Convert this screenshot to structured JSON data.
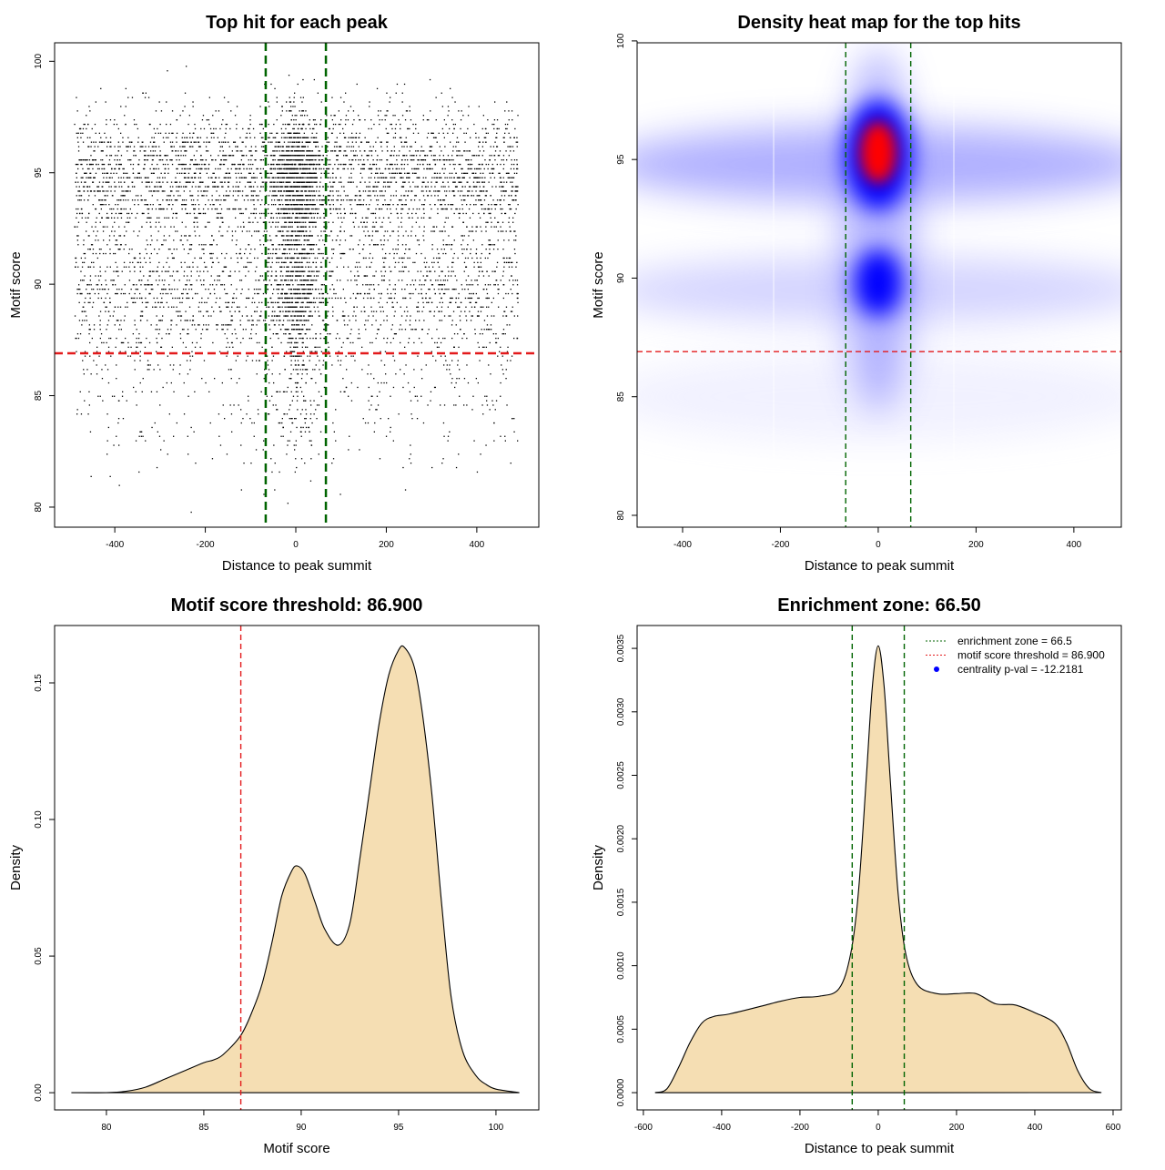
{
  "chart_data": [
    {
      "type": "scatter",
      "title": "Top hit for each peak",
      "xlabel": "Distance to peak summit",
      "ylabel": "Motif score",
      "xlim": [
        -533,
        537
      ],
      "ylim": [
        79.1,
        100.83
      ],
      "xticks": [
        -400,
        -200,
        0,
        200,
        400
      ],
      "yticks": [
        80,
        85,
        90,
        95,
        100
      ],
      "vlines": {
        "values": [
          -66.5,
          66.5
        ],
        "color": "#006400",
        "style": "dashed"
      },
      "hlines": {
        "values": [
          86.9
        ],
        "color": "#e31a1c",
        "style": "dashed"
      },
      "point_color": "#000000",
      "grid": false
    },
    {
      "type": "heatmap",
      "title": "Density heat map for the top hits",
      "xlabel": "Distance to peak summit",
      "ylabel": "Motif score",
      "xlim": [
        -493,
        497
      ],
      "ylim": [
        79.5,
        99.92
      ],
      "xticks": [
        -400,
        -200,
        0,
        200,
        400
      ],
      "yticks": [
        80,
        85,
        90,
        95,
        100
      ],
      "colors": [
        "#ffffff",
        "#0000ff",
        "#ff0000"
      ],
      "hotspots": [
        {
          "x": 0,
          "y": 95.3,
          "level": "high"
        },
        {
          "x": 0,
          "y": 89.8,
          "level": "medium"
        }
      ],
      "vlines": {
        "values": [
          -66.5,
          66.5
        ],
        "color": "#006400",
        "style": "dashed"
      },
      "hlines": {
        "values": [
          86.9
        ],
        "color": "#e31a1c",
        "style": "dashed"
      },
      "grid": false
    },
    {
      "type": "area",
      "title": "Motif score threshold: 86.900",
      "xlabel": "Motif score",
      "ylabel": "Density",
      "xlim": [
        77.34,
        102.2
      ],
      "ylim": [
        -0.0063,
        0.171
      ],
      "xticks": [
        80,
        85,
        90,
        95,
        100
      ],
      "yticks": [
        "0.00",
        "0.05",
        "0.10",
        "0.15"
      ],
      "fill": "#f5deb3",
      "x": [
        78.2,
        80,
        81,
        82,
        83,
        84,
        85,
        85.5,
        86,
        86.9,
        87.5,
        88,
        88.5,
        89,
        89.5,
        89.8,
        90.2,
        90.7,
        91.2,
        91.9,
        92.5,
        93,
        93.5,
        94,
        94.5,
        95,
        95.3,
        95.8,
        96.2,
        96.7,
        97.2,
        97.7,
        98.3,
        99,
        99.5,
        100,
        101.2
      ],
      "y": [
        0,
        0,
        0.0005,
        0.002,
        0.005,
        0.008,
        0.011,
        0.012,
        0.014,
        0.021,
        0.03,
        0.04,
        0.055,
        0.072,
        0.081,
        0.083,
        0.08,
        0.07,
        0.06,
        0.054,
        0.062,
        0.085,
        0.11,
        0.135,
        0.153,
        0.162,
        0.163,
        0.156,
        0.14,
        0.11,
        0.07,
        0.035,
        0.015,
        0.006,
        0.003,
        0.0013,
        0
      ],
      "vlines": {
        "values": [
          86.9
        ],
        "color": "#e31a1c",
        "style": "dashed"
      },
      "grid": false
    },
    {
      "type": "area",
      "title": "Enrichment zone: 66.50",
      "xlabel": "Distance to peak summit",
      "ylabel": "Density",
      "xlim": [
        -616,
        621
      ],
      "ylim": [
        -0.000136,
        0.00368
      ],
      "xticks": [
        -600,
        -400,
        -200,
        0,
        200,
        400,
        600
      ],
      "yticks": [
        "0.0000",
        "0.0005",
        "0.0010",
        "0.0015",
        "0.0020",
        "0.0025",
        "0.0030",
        "0.0035"
      ],
      "fill": "#f5deb3",
      "x": [
        -570,
        -540,
        -510,
        -480,
        -450,
        -420,
        -380,
        -300,
        -250,
        -200,
        -150,
        -100,
        -70,
        -50,
        -30,
        -15,
        0,
        15,
        30,
        50,
        70,
        100,
        150,
        200,
        250,
        300,
        350,
        400,
        450,
        480,
        510,
        540,
        570
      ],
      "y": [
        0,
        3e-05,
        0.0002,
        0.0004,
        0.00055,
        0.0006,
        0.00062,
        0.00068,
        0.00072,
        0.00075,
        0.00076,
        0.00082,
        0.0011,
        0.0016,
        0.0025,
        0.0032,
        0.00352,
        0.0032,
        0.0025,
        0.0016,
        0.0011,
        0.00085,
        0.00078,
        0.00078,
        0.00078,
        0.0007,
        0.00069,
        0.00063,
        0.00055,
        0.0004,
        0.00017,
        3e-05,
        0
      ],
      "vlines": {
        "values": [
          -66.5,
          66.5
        ],
        "color": "#006400",
        "style": "dashed"
      },
      "legend": {
        "placement": "top-right",
        "entries": [
          {
            "label": "enrichment zone = 66.5",
            "color": "#006400",
            "symbol": "dotted-line"
          },
          {
            "label": "motif score threshold = 86.900",
            "color": "#e31a1c",
            "symbol": "dotted-line"
          },
          {
            "label": "centrality p-val = -12.2181",
            "color": "#0000ff",
            "symbol": "point"
          }
        ]
      },
      "grid": false
    }
  ]
}
